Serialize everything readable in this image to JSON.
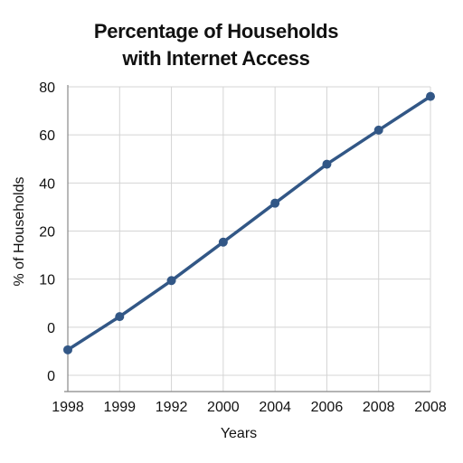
{
  "chart_data": {
    "type": "line",
    "title_lines": [
      "Percentage of Households",
      "with Internet Access"
    ],
    "xlabel": "Years",
    "ylabel": "% of Households",
    "x_ticks": [
      "1998",
      "1999",
      "1992",
      "2000",
      "2004",
      "2006",
      "2008",
      "2008"
    ],
    "y_ticks": [
      "0",
      "0",
      "10",
      "20",
      "40",
      "60",
      "80"
    ],
    "ylim": [
      0,
      6
    ],
    "grid": true,
    "legend": "none",
    "series": [
      {
        "values": [
          0.53,
          1.22,
          1.97,
          2.77,
          3.58,
          4.39,
          5.1,
          5.8
        ]
      }
    ],
    "colors": {
      "line": "#325786",
      "marker": "#325786",
      "grid": "#d4d4d4",
      "axis": "#888888"
    }
  }
}
